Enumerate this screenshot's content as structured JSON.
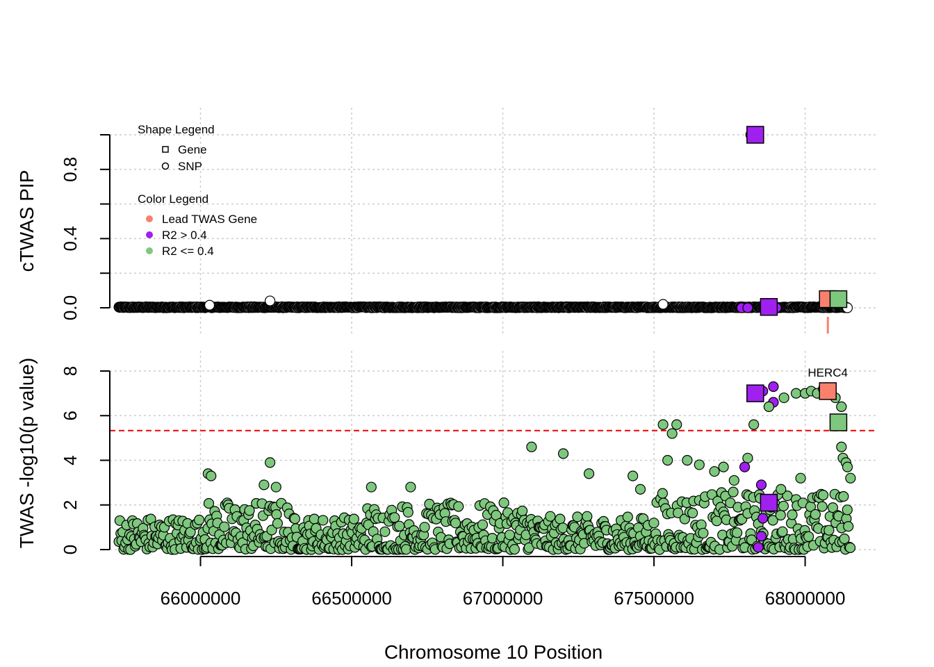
{
  "chart_data": {
    "type": "scatter",
    "xlabel": "Chromosome 10 Position",
    "xlim": [
      65700000,
      68240000
    ],
    "x_ticks": [
      66000000,
      66500000,
      67000000,
      67500000,
      68000000
    ],
    "x_tick_labels": [
      "66000000",
      "66500000",
      "67000000",
      "67500000",
      "68000000"
    ],
    "panels": [
      {
        "id": "pip",
        "ylabel": "cTWAS PIP",
        "ylim": [
          0,
          1
        ],
        "y_ticks": [
          0,
          0.2,
          0.4,
          0.6,
          0.8,
          1.0
        ],
        "y_tick_labels": [
          "0.0",
          "",
          "0.4",
          "",
          "0.8",
          ""
        ],
        "genes": [
          {
            "x": 67835000,
            "y": 1.0,
            "class": "r2_high"
          },
          {
            "x": 67880000,
            "y": 0.005,
            "class": "r2_high"
          },
          {
            "x": 68075000,
            "y": 0.05,
            "class": "lead"
          },
          {
            "x": 68110000,
            "y": 0.05,
            "class": "r2_low"
          }
        ],
        "snps_notable": [
          {
            "x": 66230000,
            "y": 0.04
          },
          {
            "x": 66030000,
            "y": 0.015
          },
          {
            "x": 67530000,
            "y": 0.02
          },
          {
            "x": 67820000,
            "y": 1.0
          },
          {
            "x": 67790000,
            "y": 0.0,
            "class": "r2_high"
          },
          {
            "x": 67810000,
            "y": 0.0,
            "class": "r2_high"
          },
          {
            "x": 67905000,
            "y": 0.0,
            "class": "r2_high"
          },
          {
            "x": 68140000,
            "y": 0.0
          }
        ],
        "lead_marker_x": 68075000
      },
      {
        "id": "twas",
        "ylabel": "TWAS -log10(p value)",
        "ylim": [
          0,
          8.5
        ],
        "y_ticks": [
          0,
          2,
          4,
          6,
          8
        ],
        "y_tick_labels": [
          "0",
          "2",
          "4",
          "6",
          "8"
        ],
        "threshold": 5.33,
        "genes": [
          {
            "x": 67835000,
            "y": 7.0,
            "class": "r2_high"
          },
          {
            "x": 67880000,
            "y": 2.1,
            "class": "r2_high"
          },
          {
            "x": 68075000,
            "y": 7.1,
            "class": "lead",
            "label": "HERC4"
          },
          {
            "x": 68110000,
            "y": 5.7,
            "class": "r2_low"
          }
        ],
        "snps_notable": [
          {
            "x": 66230000,
            "y": 3.9
          },
          {
            "x": 66025000,
            "y": 3.4
          },
          {
            "x": 66035000,
            "y": 3.3
          },
          {
            "x": 66210000,
            "y": 2.9
          },
          {
            "x": 66250000,
            "y": 2.8
          },
          {
            "x": 66565000,
            "y": 2.8
          },
          {
            "x": 66695000,
            "y": 2.8
          },
          {
            "x": 67095000,
            "y": 4.6
          },
          {
            "x": 67200000,
            "y": 4.3
          },
          {
            "x": 67285000,
            "y": 3.4
          },
          {
            "x": 67430000,
            "y": 3.3
          },
          {
            "x": 67455000,
            "y": 2.7
          },
          {
            "x": 67530000,
            "y": 5.6
          },
          {
            "x": 67575000,
            "y": 5.6
          },
          {
            "x": 67560000,
            "y": 5.2
          },
          {
            "x": 67545000,
            "y": 4.0
          },
          {
            "x": 67610000,
            "y": 4.0
          },
          {
            "x": 67650000,
            "y": 3.8
          },
          {
            "x": 67700000,
            "y": 3.5
          },
          {
            "x": 67730000,
            "y": 3.7
          },
          {
            "x": 67765000,
            "y": 3.1
          },
          {
            "x": 67830000,
            "y": 5.6
          },
          {
            "x": 67810000,
            "y": 4.1
          },
          {
            "x": 67800000,
            "y": 3.7,
            "class": "r2_high"
          },
          {
            "x": 67855000,
            "y": 2.9,
            "class": "r2_high"
          },
          {
            "x": 67860000,
            "y": 7.1,
            "class": "r2_high"
          },
          {
            "x": 67895000,
            "y": 7.3,
            "class": "r2_high"
          },
          {
            "x": 67895000,
            "y": 6.6,
            "class": "r2_high"
          },
          {
            "x": 67860000,
            "y": 1.4,
            "class": "r2_high"
          },
          {
            "x": 67855000,
            "y": 0.6,
            "class": "r2_high"
          },
          {
            "x": 67845000,
            "y": 0.1,
            "class": "r2_high"
          },
          {
            "x": 67880000,
            "y": 6.4
          },
          {
            "x": 67930000,
            "y": 6.8
          },
          {
            "x": 67970000,
            "y": 7.0
          },
          {
            "x": 68000000,
            "y": 7.0
          },
          {
            "x": 68020000,
            "y": 7.1
          },
          {
            "x": 68040000,
            "y": 7.0
          },
          {
            "x": 68060000,
            "y": 7.2
          },
          {
            "x": 68100000,
            "y": 6.8
          },
          {
            "x": 68120000,
            "y": 6.4
          },
          {
            "x": 68120000,
            "y": 4.6
          },
          {
            "x": 68125000,
            "y": 4.1
          },
          {
            "x": 68135000,
            "y": 3.9
          },
          {
            "x": 68140000,
            "y": 3.7
          },
          {
            "x": 68150000,
            "y": 3.2
          },
          {
            "x": 67985000,
            "y": 3.2
          },
          {
            "x": 67920000,
            "y": 2.7
          }
        ]
      }
    ],
    "legend": {
      "position": "top-left",
      "shape_title": "Shape Legend",
      "shape_items": [
        {
          "shape": "square",
          "label": "Gene"
        },
        {
          "shape": "circle",
          "label": "SNP"
        }
      ],
      "color_title": "Color Legend",
      "color_items": [
        {
          "class": "lead",
          "label": "Lead TWAS Gene"
        },
        {
          "class": "r2_high",
          "label": "R2 > 0.4"
        },
        {
          "class": "r2_low",
          "label": "R2 <= 0.4"
        }
      ]
    },
    "colors": {
      "lead": "#f8816e",
      "r2_high": "#a020f0",
      "r2_low": "#7ec87e",
      "pip_snp": "#ffffff",
      "threshold": "#ee0000",
      "grid": "#cccccc"
    }
  }
}
